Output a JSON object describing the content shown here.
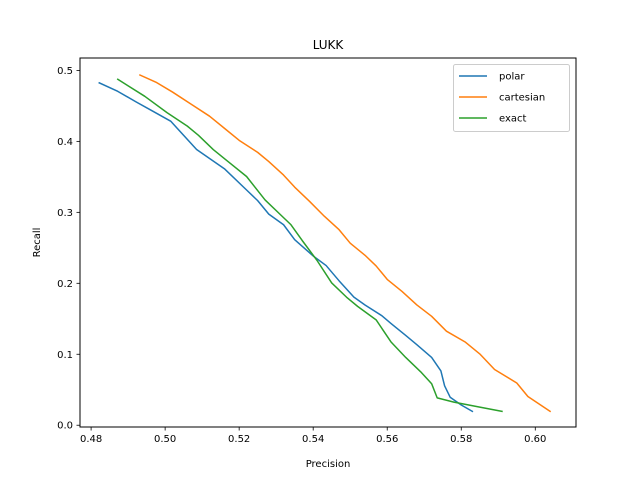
{
  "chart_data": {
    "type": "line",
    "title": "LUKK",
    "xlabel": "Precision",
    "ylabel": "Recall",
    "xlim": [
      0.477,
      0.611
    ],
    "ylim": [
      -0.0025,
      0.5175
    ],
    "xticks": [
      0.48,
      0.5,
      0.52,
      0.54,
      0.56,
      0.58,
      0.6
    ],
    "xtick_labels": [
      "0.48",
      "0.50",
      "0.52",
      "0.54",
      "0.56",
      "0.58",
      "0.60"
    ],
    "yticks": [
      0.0,
      0.1,
      0.2,
      0.3,
      0.4,
      0.5
    ],
    "ytick_labels": [
      "0.0",
      "0.1",
      "0.2",
      "0.3",
      "0.4",
      "0.5"
    ],
    "grid": false,
    "legend_position": "top-right",
    "series": [
      {
        "name": "polar",
        "color": "#1f77b4",
        "points": [
          [
            0.4822,
            0.4825
          ],
          [
            0.4872,
            0.4705
          ],
          [
            0.4922,
            0.4555
          ],
          [
            0.496,
            0.4445
          ],
          [
            0.5015,
            0.4285
          ],
          [
            0.5085,
            0.3885
          ],
          [
            0.516,
            0.3615
          ],
          [
            0.522,
            0.3315
          ],
          [
            0.525,
            0.3165
          ],
          [
            0.528,
            0.2975
          ],
          [
            0.532,
            0.2825
          ],
          [
            0.535,
            0.2615
          ],
          [
            0.54,
            0.2385
          ],
          [
            0.5435,
            0.225
          ],
          [
            0.547,
            0.2035
          ],
          [
            0.551,
            0.1805
          ],
          [
            0.554,
            0.1695
          ],
          [
            0.5585,
            0.1545
          ],
          [
            0.561,
            0.1435
          ],
          [
            0.565,
            0.1265
          ],
          [
            0.568,
            0.1135
          ],
          [
            0.572,
            0.0955
          ],
          [
            0.5745,
            0.0765
          ],
          [
            0.5755,
            0.0555
          ],
          [
            0.577,
            0.0395
          ],
          [
            0.58,
            0.0285
          ],
          [
            0.583,
            0.0195
          ]
        ]
      },
      {
        "name": "cartesian",
        "color": "#ff7f0e",
        "points": [
          [
            0.4932,
            0.4935
          ],
          [
            0.4975,
            0.4835
          ],
          [
            0.502,
            0.4695
          ],
          [
            0.507,
            0.4525
          ],
          [
            0.512,
            0.4355
          ],
          [
            0.516,
            0.4185
          ],
          [
            0.52,
            0.4015
          ],
          [
            0.525,
            0.3845
          ],
          [
            0.528,
            0.3715
          ],
          [
            0.532,
            0.3525
          ],
          [
            0.535,
            0.3355
          ],
          [
            0.539,
            0.3155
          ],
          [
            0.543,
            0.2945
          ],
          [
            0.547,
            0.2755
          ],
          [
            0.55,
            0.2565
          ],
          [
            0.554,
            0.2395
          ],
          [
            0.557,
            0.2245
          ],
          [
            0.56,
            0.2055
          ],
          [
            0.564,
            0.1885
          ],
          [
            0.568,
            0.1695
          ],
          [
            0.572,
            0.1535
          ],
          [
            0.576,
            0.1325
          ],
          [
            0.581,
            0.1175
          ],
          [
            0.585,
            0.1005
          ],
          [
            0.589,
            0.0785
          ],
          [
            0.595,
            0.0595
          ],
          [
            0.598,
            0.0405
          ],
          [
            0.604,
            0.0195
          ]
        ]
      },
      {
        "name": "exact",
        "color": "#2ca02c",
        "points": [
          [
            0.4872,
            0.4875
          ],
          [
            0.4945,
            0.4635
          ],
          [
            0.5005,
            0.4405
          ],
          [
            0.506,
            0.4215
          ],
          [
            0.509,
            0.4085
          ],
          [
            0.513,
            0.3885
          ],
          [
            0.517,
            0.3715
          ],
          [
            0.522,
            0.3505
          ],
          [
            0.527,
            0.3175
          ],
          [
            0.531,
            0.2975
          ],
          [
            0.534,
            0.2825
          ],
          [
            0.537,
            0.2605
          ],
          [
            0.541,
            0.2325
          ],
          [
            0.545,
            0.2005
          ],
          [
            0.549,
            0.1805
          ],
          [
            0.552,
            0.1675
          ],
          [
            0.557,
            0.1485
          ],
          [
            0.561,
            0.1175
          ],
          [
            0.565,
            0.0955
          ],
          [
            0.569,
            0.0755
          ],
          [
            0.572,
            0.0585
          ],
          [
            0.5735,
            0.0385
          ],
          [
            0.578,
            0.0325
          ],
          [
            0.585,
            0.0255
          ],
          [
            0.591,
            0.0195
          ]
        ]
      }
    ]
  }
}
